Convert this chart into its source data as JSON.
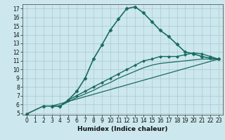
{
  "title": "",
  "xlabel": "Humidex (Indice chaleur)",
  "ylabel": "",
  "bg_color": "#cce8ee",
  "line_color": "#1a6b60",
  "grid_color": "#aac8d0",
  "xlim": [
    -0.5,
    23.5
  ],
  "ylim": [
    4.8,
    17.5
  ],
  "xticks": [
    0,
    1,
    2,
    3,
    4,
    5,
    6,
    7,
    8,
    9,
    10,
    11,
    12,
    13,
    14,
    15,
    16,
    17,
    18,
    19,
    20,
    21,
    22,
    23
  ],
  "yticks": [
    5,
    6,
    7,
    8,
    9,
    10,
    11,
    12,
    13,
    14,
    15,
    16,
    17
  ],
  "lines": [
    {
      "x": [
        0,
        2,
        3,
        4,
        5,
        6,
        7,
        8,
        9,
        10,
        11,
        12,
        13,
        14,
        15,
        16,
        17,
        18,
        19,
        20,
        21,
        22,
        23
      ],
      "y": [
        4.9,
        5.8,
        5.8,
        5.8,
        6.5,
        7.5,
        9.0,
        11.2,
        12.8,
        14.5,
        15.8,
        17.0,
        17.2,
        16.5,
        15.5,
        14.5,
        13.8,
        12.9,
        12.0,
        11.8,
        11.5,
        11.3,
        11.2
      ],
      "marker": "D",
      "markersize": 2.5,
      "linewidth": 1.2
    },
    {
      "x": [
        3,
        4,
        5,
        6,
        7,
        8,
        9,
        10,
        11,
        12,
        13,
        14,
        15,
        16,
        17,
        18,
        19,
        20,
        21,
        22,
        23
      ],
      "y": [
        5.8,
        5.8,
        6.5,
        7.0,
        7.5,
        8.0,
        8.5,
        9.0,
        9.5,
        10.0,
        10.5,
        11.0,
        11.2,
        11.5,
        11.5,
        11.5,
        11.7,
        11.9,
        11.8,
        11.5,
        11.2
      ],
      "marker": "D",
      "markersize": 2.0,
      "linewidth": 1.0
    },
    {
      "x": [
        3,
        4,
        5,
        6,
        7,
        8,
        9,
        10,
        11,
        12,
        13,
        14,
        15,
        16,
        17,
        18,
        19,
        20,
        21,
        22,
        23
      ],
      "y": [
        5.8,
        5.8,
        6.3,
        6.8,
        7.2,
        7.6,
        8.1,
        8.5,
        9.0,
        9.4,
        9.8,
        10.2,
        10.5,
        10.7,
        10.8,
        10.9,
        11.0,
        11.1,
        11.2,
        11.2,
        11.1
      ],
      "marker": null,
      "markersize": 0,
      "linewidth": 0.9
    },
    {
      "x": [
        3,
        23
      ],
      "y": [
        5.8,
        11.2
      ],
      "marker": null,
      "markersize": 0,
      "linewidth": 0.9
    }
  ]
}
